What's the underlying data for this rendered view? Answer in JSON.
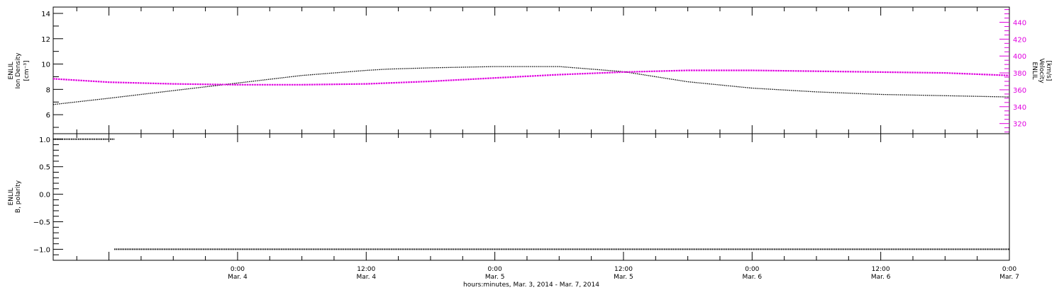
{
  "xaxis": {
    "title": "hours:minutes, Mar.  3, 2014 - Mar.  7, 2014",
    "ticks": [
      {
        "time": "0:00",
        "date": "Mar. 4"
      },
      {
        "time": "12:00",
        "date": "Mar. 4"
      },
      {
        "time": "0:00",
        "date": "Mar. 5"
      },
      {
        "time": "12:00",
        "date": "Mar. 5"
      },
      {
        "time": "0:00",
        "date": "Mar. 6"
      },
      {
        "time": "12:00",
        "date": "Mar. 6"
      },
      {
        "time": "0:00",
        "date": "Mar. 7"
      }
    ]
  },
  "chart_data": [
    {
      "type": "line",
      "x_unit": "date-time",
      "xlim": [
        "2014-03-03 06:48",
        "2014-03-07 00:00"
      ],
      "ylabel_left": [
        "ENLIL",
        "Ion Density",
        "[cm⁻³]"
      ],
      "ylabel_right": [
        "ENLIL",
        "Velocity",
        "[km/s]"
      ],
      "left_axis": {
        "ylim": [
          4.5,
          14.5
        ],
        "tick_labels": [
          "6",
          "8",
          "10",
          "12",
          "14"
        ],
        "color": "#000000"
      },
      "right_axis": {
        "ylim": [
          308,
          458
        ],
        "tick_labels": [
          "320",
          "340",
          "360",
          "380",
          "400",
          "420",
          "440"
        ],
        "color": "#e000e0"
      },
      "series": [
        {
          "axis": "left",
          "color": "#000000",
          "x": [
            "2014-03-03 06:48",
            "2014-03-03 12:00",
            "2014-03-03 18:00",
            "2014-03-04 00:00",
            "2014-03-04 06:00",
            "2014-03-04 12:00",
            "2014-03-04 14:00",
            "2014-03-04 18:00",
            "2014-03-05 00:00",
            "2014-03-05 06:00",
            "2014-03-05 12:00",
            "2014-03-05 18:00",
            "2014-03-06 00:00",
            "2014-03-06 06:00",
            "2014-03-06 12:00",
            "2014-03-06 18:00",
            "2014-03-07 00:00"
          ],
          "values": [
            6.8,
            7.3,
            7.9,
            8.5,
            9.1,
            9.5,
            9.6,
            9.7,
            9.8,
            9.8,
            9.4,
            8.6,
            8.1,
            7.8,
            7.6,
            7.5,
            7.4
          ]
        },
        {
          "axis": "right",
          "color": "#e000e0",
          "x": [
            "2014-03-03 06:48",
            "2014-03-03 12:00",
            "2014-03-03 18:00",
            "2014-03-04 00:00",
            "2014-03-04 06:00",
            "2014-03-04 12:00",
            "2014-03-04 18:00",
            "2014-03-05 00:00",
            "2014-03-05 06:00",
            "2014-03-05 12:00",
            "2014-03-05 18:00",
            "2014-03-06 00:00",
            "2014-03-06 06:00",
            "2014-03-06 12:00",
            "2014-03-06 18:00",
            "2014-03-07 00:00"
          ],
          "values": [
            373,
            369,
            367,
            366,
            366,
            367,
            370,
            374,
            378,
            381,
            383,
            383,
            382,
            381,
            380,
            377
          ]
        }
      ],
      "grid": false
    },
    {
      "type": "scatter",
      "x_unit": "date-time",
      "xlim": [
        "2014-03-03 06:48",
        "2014-03-07 00:00"
      ],
      "ylabel": [
        "ENLIL",
        "B, polarity"
      ],
      "ylim": [
        -1.2,
        1.1
      ],
      "tick_labels": [
        "−1.0",
        "−0.5",
        "0.0",
        "0.5",
        "1.0"
      ],
      "series": [
        {
          "color": "#000000",
          "x_start": "2014-03-03 06:48",
          "x_end": "2014-03-03 12:30",
          "value": 1.0
        },
        {
          "color": "#000000",
          "x_start": "2014-03-03 12:30",
          "x_end": "2014-03-07 00:00",
          "value": -1.0
        }
      ],
      "grid": false
    }
  ]
}
